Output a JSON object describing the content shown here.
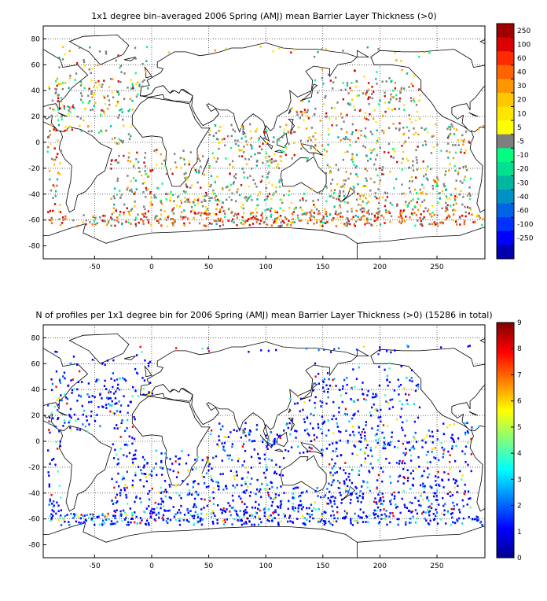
{
  "chart_data": [
    {
      "type": "heatmap",
      "title": "1x1 degree bin–averaged 2006 Spring (AMJ) mean Barrier Layer Thickness (>0)",
      "xticks": [
        "-50",
        "0",
        "50",
        "100",
        "150",
        "200",
        "250"
      ],
      "xtick_values": [
        -50,
        0,
        50,
        100,
        150,
        200,
        250
      ],
      "yticks": [
        "80",
        "60",
        "40",
        "20",
        "0",
        "-20",
        "-40",
        "-60",
        "-80"
      ],
      "ytick_values": [
        80,
        60,
        40,
        20,
        0,
        -20,
        -40,
        -60,
        -80
      ],
      "xlim": [
        -95,
        292
      ],
      "ylim": [
        -90,
        90
      ],
      "grid": true,
      "colorbar_labels": [
        "250",
        "100",
        "60",
        "40",
        "30",
        "20",
        "10",
        "5",
        "-5",
        "-10",
        "-20",
        "-30",
        "-40",
        "-60",
        "-100",
        "-250"
      ],
      "colorbar_colors": [
        "#a00000",
        "#dc0000",
        "#ff2a00",
        "#ff6400",
        "#ff9600",
        "#ffc800",
        "#ffe600",
        "#ffff00",
        "#7f7f7f",
        "#00ff80",
        "#00e090",
        "#00b8a0",
        "#0090c8",
        "#0064e6",
        "#0032ff",
        "#0000ff",
        "#0000b0"
      ]
    },
    {
      "type": "heatmap",
      "title": "N of profiles per 1x1 degree bin for 2006 Spring (AMJ) mean Barrier Layer Thickness (>0) (15286 in total)",
      "xticks": [
        "-50",
        "0",
        "50",
        "100",
        "150",
        "200",
        "250"
      ],
      "xtick_values": [
        -50,
        0,
        50,
        100,
        150,
        200,
        250
      ],
      "yticks": [
        "80",
        "60",
        "40",
        "20",
        "0",
        "-20",
        "-40",
        "-60",
        "-80"
      ],
      "ytick_values": [
        80,
        60,
        40,
        20,
        0,
        -20,
        -40,
        -60,
        -80
      ],
      "xlim": [
        -95,
        292
      ],
      "ylim": [
        -90,
        90
      ],
      "grid": true,
      "colorbar_labels": [
        "9",
        "8",
        "7",
        "6",
        "5",
        "4",
        "3",
        "2",
        "1",
        "0"
      ],
      "colorbar_range": [
        0,
        9
      ]
    }
  ]
}
